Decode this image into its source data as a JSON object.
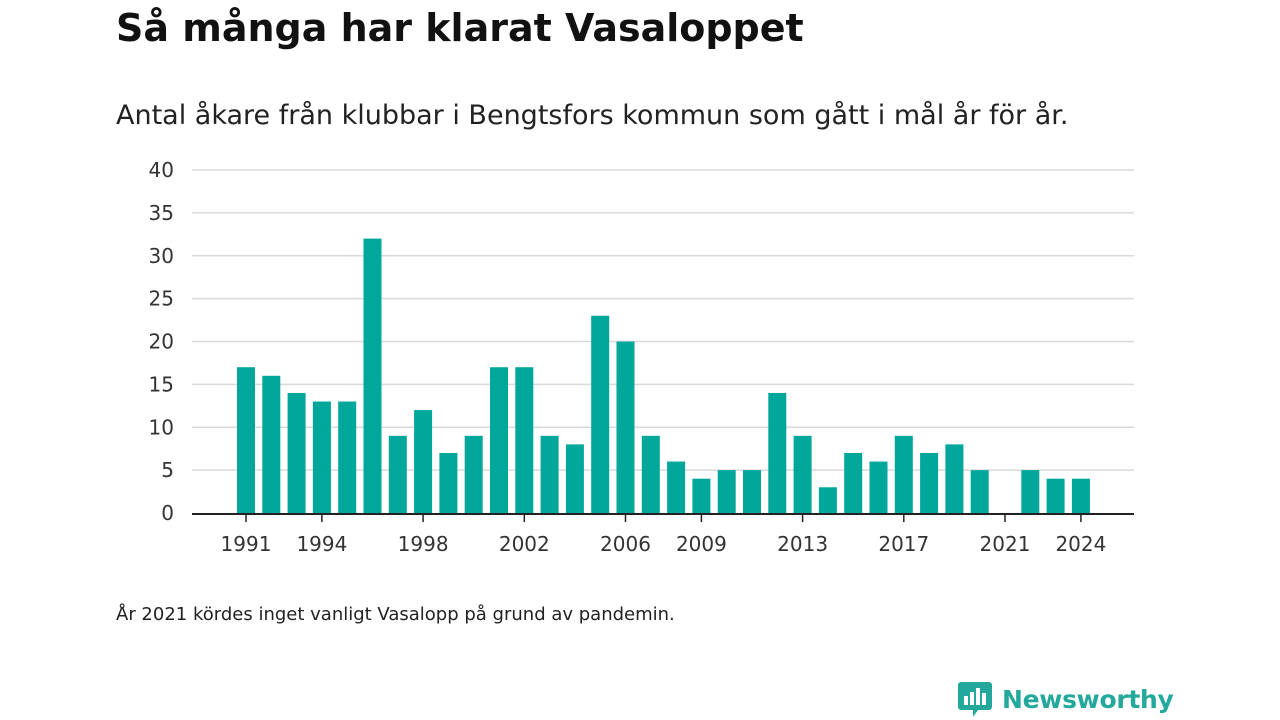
{
  "title": "Så många har klarat Vasaloppet",
  "subtitle": "Antal åkare från klubbar i Bengtsfors kommun som gått i mål år för år.",
  "note": "År 2021 kördes inget vanligt Vasalopp på grund av pandemin.",
  "brand": {
    "name": "Newsworthy",
    "icon": "newsworthy-chart-bubble-icon"
  },
  "colors": {
    "bar": "#00a79a",
    "grid": "#d9d9d9",
    "axis": "#222222",
    "brand": "#23a99b"
  },
  "chart_data": {
    "type": "bar",
    "title": "Så många har klarat Vasaloppet",
    "xlabel": "",
    "ylabel": "",
    "ylim": [
      0,
      40
    ],
    "yticks": [
      0,
      5,
      10,
      15,
      20,
      25,
      30,
      35,
      40
    ],
    "xticks": [
      1991,
      1994,
      1998,
      2002,
      2006,
      2009,
      2013,
      2017,
      2021,
      2024
    ],
    "grid": true,
    "legend": "none",
    "categories": [
      1991,
      1992,
      1993,
      1994,
      1995,
      1996,
      1997,
      1998,
      1999,
      2000,
      2001,
      2002,
      2003,
      2004,
      2005,
      2006,
      2007,
      2008,
      2009,
      2010,
      2011,
      2012,
      2013,
      2014,
      2015,
      2016,
      2017,
      2018,
      2019,
      2020,
      2021,
      2022,
      2023,
      2024
    ],
    "values": [
      17,
      16,
      14,
      13,
      13,
      32,
      9,
      12,
      7,
      9,
      17,
      17,
      9,
      8,
      23,
      20,
      9,
      6,
      4,
      5,
      5,
      14,
      9,
      3,
      7,
      6,
      9,
      7,
      8,
      5,
      0,
      5,
      4,
      4
    ]
  }
}
